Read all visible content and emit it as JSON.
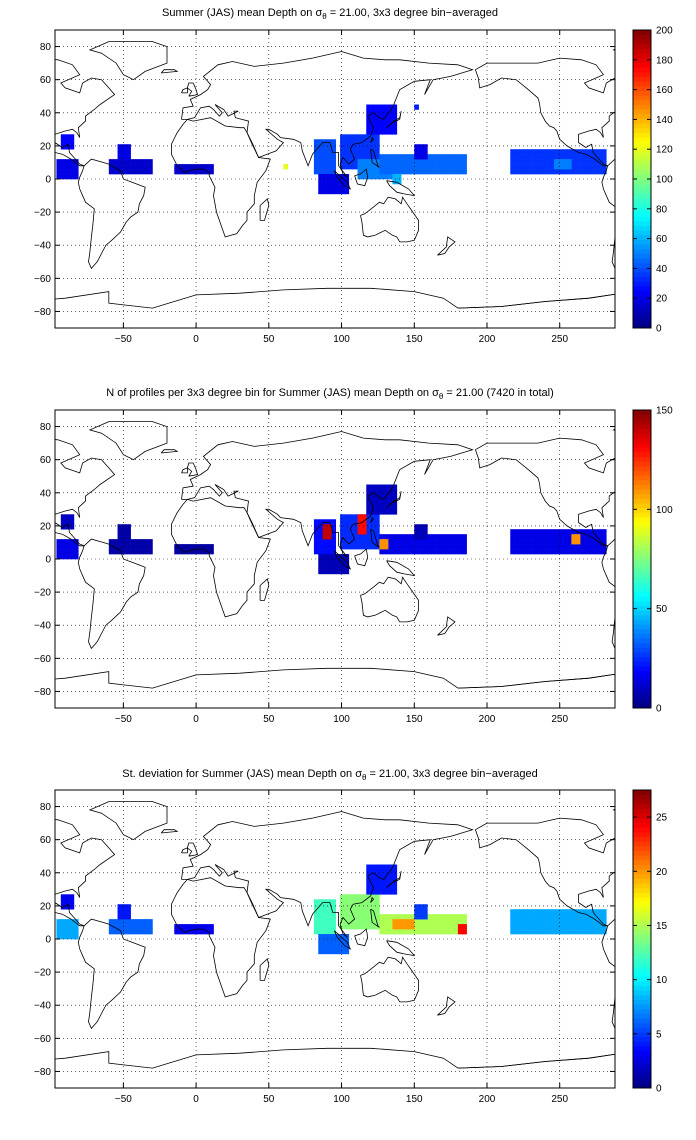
{
  "panels": [
    {
      "title_pre": "Summer (JAS) mean Depth on σ",
      "title_sub": "θ",
      "title_post": " = 21.00, 3x3 degree bin−averaged",
      "colorbar_ticks": [
        "0",
        "20",
        "40",
        "60",
        "80",
        "100",
        "120",
        "140",
        "160",
        "180",
        "200"
      ]
    },
    {
      "title_pre": "N of profiles per 3x3 degree bin for Summer (JAS) mean Depth on σ",
      "title_sub": "θ",
      "title_post": " = 21.00 (7420 in total)",
      "colorbar_ticks": [
        "0",
        "50",
        "100",
        "150"
      ]
    },
    {
      "title_pre": "St. deviation for Summer (JAS) mean Depth on σ",
      "title_sub": "θ",
      "title_post": " = 21.00, 3x3 degree bin−averaged",
      "colorbar_ticks": [
        "0",
        "5",
        "10",
        "15",
        "20",
        "25"
      ]
    }
  ],
  "x_ticks": [
    "−50",
    "0",
    "50",
    "100",
    "150",
    "200",
    "250"
  ],
  "y_ticks": [
    "80",
    "60",
    "40",
    "20",
    "0",
    "−20",
    "−40",
    "−60",
    "−80"
  ],
  "colormap": "jet",
  "chart_data": [
    {
      "type": "heatmap",
      "title": "Summer (JAS) mean Depth on σθ = 21.00, 3x3 degree bin−averaged",
      "xlim": [
        -97,
        288
      ],
      "ylim": [
        -90,
        90
      ],
      "clim": [
        0,
        200
      ],
      "x_ticks": [
        -50,
        0,
        50,
        100,
        150,
        200,
        250
      ],
      "y_ticks": [
        -80,
        -60,
        -40,
        -20,
        0,
        20,
        40,
        60,
        80
      ],
      "colorbar_ticks": [
        0,
        20,
        40,
        60,
        80,
        100,
        120,
        140,
        160,
        180,
        200
      ],
      "grid": true,
      "regions": [
        {
          "lon": [
            -96,
            -81
          ],
          "lat": [
            0,
            12
          ],
          "value": 20
        },
        {
          "lon": [
            -93,
            -84
          ],
          "lat": [
            18,
            27
          ],
          "value": 25
        },
        {
          "lon": [
            -60,
            -30
          ],
          "lat": [
            3,
            12
          ],
          "value": 15
        },
        {
          "lon": [
            -54,
            -45
          ],
          "lat": [
            12,
            21
          ],
          "value": 20
        },
        {
          "lon": [
            -15,
            12
          ],
          "lat": [
            3,
            9
          ],
          "value": 15
        },
        {
          "lon": [
            60,
            63
          ],
          "lat": [
            6,
            9
          ],
          "value": 120
        },
        {
          "lon": [
            81,
            96
          ],
          "lat": [
            3,
            24
          ],
          "value": 40
        },
        {
          "lon": [
            84,
            105
          ],
          "lat": [
            -9,
            3
          ],
          "value": 20
        },
        {
          "lon": [
            99,
            126
          ],
          "lat": [
            6,
            27
          ],
          "value": 35
        },
        {
          "lon": [
            111,
            138
          ],
          "lat": [
            0,
            12
          ],
          "value": 50
        },
        {
          "lon": [
            117,
            138
          ],
          "lat": [
            27,
            45
          ],
          "value": 25
        },
        {
          "lon": [
            126,
            186
          ],
          "lat": [
            3,
            15
          ],
          "value": 45
        },
        {
          "lon": [
            135,
            141
          ],
          "lat": [
            -3,
            3
          ],
          "value": 60
        },
        {
          "lon": [
            150,
            159
          ],
          "lat": [
            12,
            21
          ],
          "value": 20
        },
        {
          "lon": [
            150,
            153
          ],
          "lat": [
            42,
            45
          ],
          "value": 30
        },
        {
          "lon": [
            216,
            282
          ],
          "lat": [
            3,
            18
          ],
          "value": 35
        },
        {
          "lon": [
            246,
            258
          ],
          "lat": [
            6,
            12
          ],
          "value": 50
        }
      ]
    },
    {
      "type": "heatmap",
      "title": "N of profiles per 3x3 degree bin for Summer (JAS) mean Depth on σθ = 21.00 (7420 in total)",
      "xlim": [
        -97,
        288
      ],
      "ylim": [
        -90,
        90
      ],
      "clim": [
        0,
        150
      ],
      "x_ticks": [
        -50,
        0,
        50,
        100,
        150,
        200,
        250
      ],
      "y_ticks": [
        -80,
        -60,
        -40,
        -20,
        0,
        20,
        40,
        60,
        80
      ],
      "colorbar_ticks": [
        0,
        50,
        100,
        150
      ],
      "grid": true,
      "total_profiles": 7420,
      "regions": [
        {
          "lon": [
            -96,
            -81
          ],
          "lat": [
            0,
            12
          ],
          "value": 15
        },
        {
          "lon": [
            -93,
            -84
          ],
          "lat": [
            18,
            27
          ],
          "value": 10
        },
        {
          "lon": [
            -60,
            -30
          ],
          "lat": [
            3,
            12
          ],
          "value": 6
        },
        {
          "lon": [
            -54,
            -45
          ],
          "lat": [
            12,
            21
          ],
          "value": 6
        },
        {
          "lon": [
            -15,
            12
          ],
          "lat": [
            3,
            9
          ],
          "value": 5
        },
        {
          "lon": [
            81,
            96
          ],
          "lat": [
            3,
            24
          ],
          "value": 20
        },
        {
          "lon": [
            87,
            93
          ],
          "lat": [
            12,
            21
          ],
          "value": 140
        },
        {
          "lon": [
            84,
            105
          ],
          "lat": [
            -9,
            3
          ],
          "value": 8
        },
        {
          "lon": [
            99,
            126
          ],
          "lat": [
            6,
            27
          ],
          "value": 25
        },
        {
          "lon": [
            111,
            117
          ],
          "lat": [
            15,
            27
          ],
          "value": 130
        },
        {
          "lon": [
            117,
            138
          ],
          "lat": [
            27,
            45
          ],
          "value": 10
        },
        {
          "lon": [
            126,
            186
          ],
          "lat": [
            3,
            15
          ],
          "value": 15
        },
        {
          "lon": [
            126,
            132
          ],
          "lat": [
            6,
            12
          ],
          "value": 110
        },
        {
          "lon": [
            150,
            159
          ],
          "lat": [
            12,
            21
          ],
          "value": 8
        },
        {
          "lon": [
            216,
            282
          ],
          "lat": [
            3,
            18
          ],
          "value": 15
        },
        {
          "lon": [
            258,
            264
          ],
          "lat": [
            9,
            15
          ],
          "value": 110
        }
      ]
    },
    {
      "type": "heatmap",
      "title": "St. deviation for Summer (JAS) mean Depth on σθ = 21.00, 3x3 degree bin−averaged",
      "xlim": [
        -97,
        288
      ],
      "ylim": [
        -90,
        90
      ],
      "clim": [
        0,
        27.5
      ],
      "x_ticks": [
        -50,
        0,
        50,
        100,
        150,
        200,
        250
      ],
      "y_ticks": [
        -80,
        -60,
        -40,
        -20,
        0,
        20,
        40,
        60,
        80
      ],
      "colorbar_ticks": [
        0,
        5,
        10,
        15,
        20,
        25
      ],
      "grid": true,
      "regions": [
        {
          "lon": [
            -96,
            -81
          ],
          "lat": [
            0,
            12
          ],
          "value": 8
        },
        {
          "lon": [
            -93,
            -84
          ],
          "lat": [
            18,
            27
          ],
          "value": 3
        },
        {
          "lon": [
            -60,
            -30
          ],
          "lat": [
            3,
            12
          ],
          "value": 6
        },
        {
          "lon": [
            -54,
            -45
          ],
          "lat": [
            12,
            21
          ],
          "value": 4
        },
        {
          "lon": [
            -15,
            12
          ],
          "lat": [
            3,
            9
          ],
          "value": 3
        },
        {
          "lon": [
            81,
            96
          ],
          "lat": [
            3,
            24
          ],
          "value": 12
        },
        {
          "lon": [
            84,
            105
          ],
          "lat": [
            -9,
            3
          ],
          "value": 6
        },
        {
          "lon": [
            99,
            126
          ],
          "lat": [
            6,
            27
          ],
          "value": 14
        },
        {
          "lon": [
            117,
            138
          ],
          "lat": [
            27,
            45
          ],
          "value": 4
        },
        {
          "lon": [
            126,
            186
          ],
          "lat": [
            3,
            15
          ],
          "value": 15
        },
        {
          "lon": [
            135,
            150
          ],
          "lat": [
            6,
            12
          ],
          "value": 20
        },
        {
          "lon": [
            180,
            186
          ],
          "lat": [
            3,
            9
          ],
          "value": 24
        },
        {
          "lon": [
            150,
            159
          ],
          "lat": [
            12,
            21
          ],
          "value": 5
        },
        {
          "lon": [
            216,
            282
          ],
          "lat": [
            3,
            18
          ],
          "value": 8
        }
      ]
    }
  ]
}
